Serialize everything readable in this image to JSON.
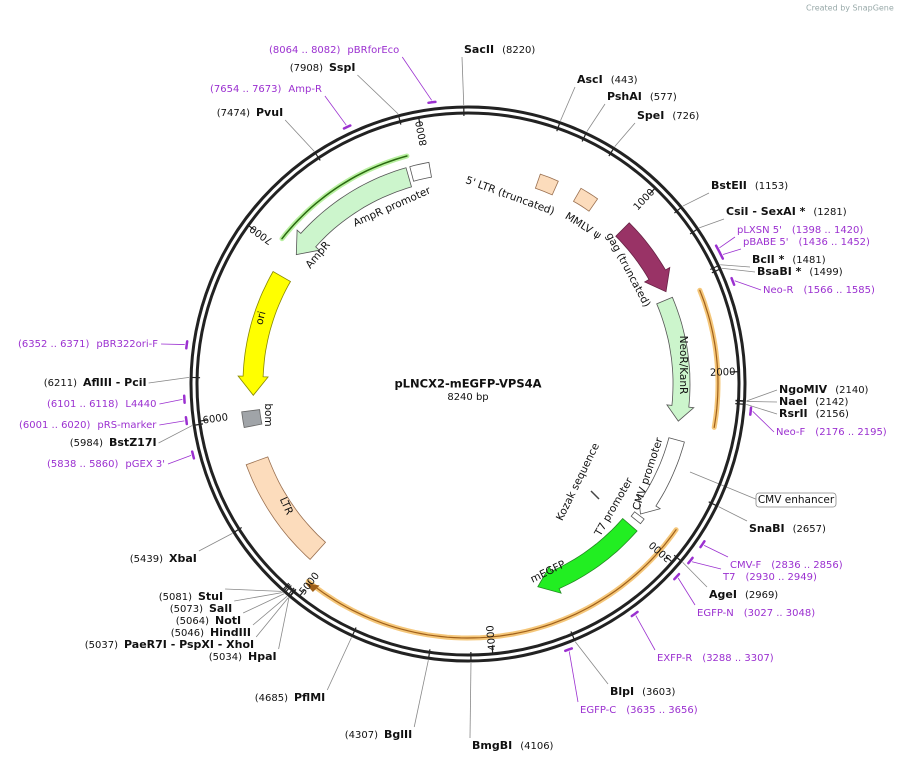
{
  "header": {
    "credit": "Created by SnapGene"
  },
  "map": {
    "name": "pLNCX2-mEGFP-VPS4A",
    "size": "8240 bp",
    "ticks": [
      1000,
      2000,
      3000,
      4000,
      5000,
      6000,
      7000,
      8000
    ]
  },
  "enzymes": [
    {
      "name": "SacII",
      "position": "(8220)"
    },
    {
      "name": "AscI",
      "position": "(443)"
    },
    {
      "name": "PshAI",
      "position": "(577)"
    },
    {
      "name": "SpeI",
      "position": "(726)"
    },
    {
      "name": "BstEII",
      "position": "(1153)"
    },
    {
      "name": "CsiI - SexAI *",
      "position": "(1281)"
    },
    {
      "name": "BclI *",
      "position": "(1481)"
    },
    {
      "name": "BsaBI *",
      "position": "(1499)"
    },
    {
      "name": "NgoMIV",
      "position": "(2140)"
    },
    {
      "name": "NaeI",
      "position": "(2142)"
    },
    {
      "name": "RsrII",
      "position": "(2156)"
    },
    {
      "name": "SnaBI",
      "position": "(2657)"
    },
    {
      "name": "AgeI",
      "position": "(2969)"
    },
    {
      "name": "BlpI",
      "position": "(3603)"
    },
    {
      "name": "BmgBI",
      "position": "(4106)"
    },
    {
      "name": "BglII",
      "position": "(4307)"
    },
    {
      "name": "PflMI",
      "position": "(4685)"
    },
    {
      "name": "HpaI",
      "position": "(5034)"
    },
    {
      "name": "PaeR7I - PspXI - XhoI",
      "position": "(5037)"
    },
    {
      "name": "HindIII",
      "position": "(5046)"
    },
    {
      "name": "NotI",
      "position": "(5064)"
    },
    {
      "name": "SalI",
      "position": "(5073)"
    },
    {
      "name": "StuI",
      "position": "(5081)"
    },
    {
      "name": "XbaI",
      "position": "(5439)"
    },
    {
      "name": "BstZ17I",
      "position": "(5984)"
    },
    {
      "name": "AflIII - PciI",
      "position": "(6211)"
    },
    {
      "name": "PvuI",
      "position": "(7474)"
    },
    {
      "name": "SspI",
      "position": "(7908)"
    }
  ],
  "primers": [
    {
      "name": "pBRforEco",
      "range": "(8064 .. 8082)"
    },
    {
      "name": "Amp-R",
      "range": "(7654 .. 7673)"
    },
    {
      "name": "pLXSN 5'",
      "range": "(1398 .. 1420)"
    },
    {
      "name": "pBABE 5'",
      "range": "(1436 .. 1452)"
    },
    {
      "name": "Neo-R",
      "range": "(1566 .. 1585)"
    },
    {
      "name": "pBR322ori-F",
      "range": "(6352 .. 6371)"
    },
    {
      "name": "L4440",
      "range": "(6101 .. 6118)"
    },
    {
      "name": "pRS-marker",
      "range": "(6001 .. 6020)"
    },
    {
      "name": "pGEX 3'",
      "range": "(5838 .. 5860)"
    },
    {
      "name": "Neo-F",
      "range": "(2176 .. 2195)"
    },
    {
      "name": "CMV-F",
      "range": "(2836 .. 2856)"
    },
    {
      "name": "T7",
      "range": "(2930 .. 2949)"
    },
    {
      "name": "EGFP-N",
      "range": "(3027 .. 3048)"
    },
    {
      "name": "EXFP-R",
      "range": "(3288 .. 3307)"
    },
    {
      "name": "EGFP-C",
      "range": "(3635 .. 3656)"
    }
  ],
  "features": [
    {
      "label": "5' LTR (truncated)"
    },
    {
      "label": "MMLV ψ"
    },
    {
      "label": "gag (truncated)"
    },
    {
      "label": "NeoR/KanR"
    },
    {
      "label": "CMV enhancer"
    },
    {
      "label": "CMV promoter"
    },
    {
      "label": "Kozak sequence"
    },
    {
      "label": "T7 promoter"
    },
    {
      "label": "mEGFP"
    },
    {
      "label": "LTR"
    },
    {
      "label": "bom"
    },
    {
      "label": "ori"
    },
    {
      "label": "AmpR"
    },
    {
      "label": "AmpR promoter"
    }
  ]
}
